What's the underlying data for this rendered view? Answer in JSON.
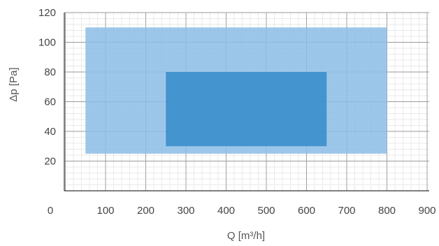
{
  "chart_data": {
    "type": "area",
    "title": "",
    "xlabel": "Q [m³/h]",
    "ylabel": "Δp [Pa]",
    "xlim": [
      0,
      900
    ],
    "ylim": [
      0,
      120
    ],
    "x_ticks": [
      0,
      100,
      200,
      300,
      400,
      500,
      600,
      700,
      800,
      900
    ],
    "y_ticks": [
      20,
      40,
      60,
      80,
      100,
      120
    ],
    "grid": true,
    "regions": [
      {
        "x": [
          50,
          800
        ],
        "y": [
          25,
          110
        ],
        "color": "#8cbde6"
      },
      {
        "x": [
          250,
          650
        ],
        "y": [
          30,
          80
        ],
        "color": "#3a8ecc"
      }
    ]
  }
}
